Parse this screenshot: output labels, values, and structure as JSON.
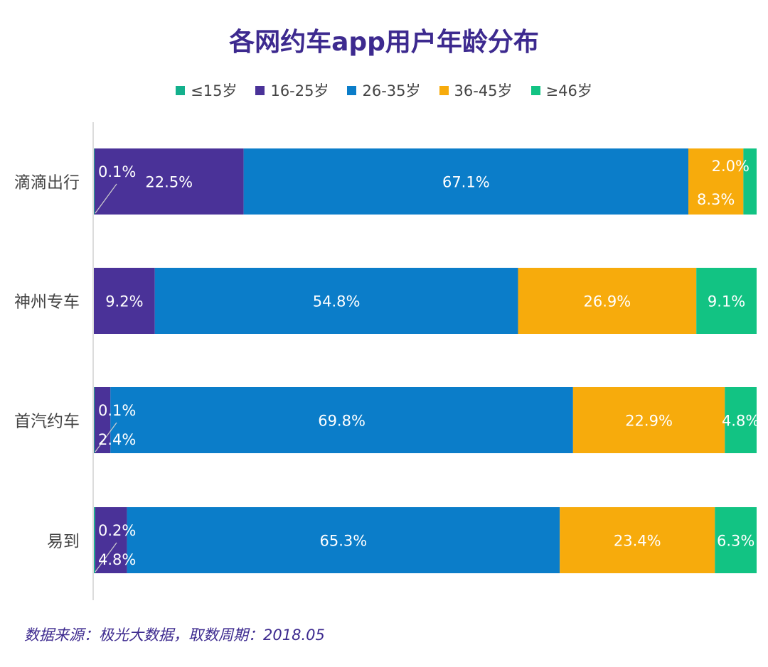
{
  "chart_data": {
    "type": "bar",
    "orientation": "horizontal",
    "stacked": true,
    "title": "各网约车app用户年龄分布",
    "categories": [
      "滴滴出行",
      "神州专车",
      "首汽约车",
      "易到"
    ],
    "series": [
      {
        "name": "≤15岁",
        "color": "#13b08c",
        "values": [
          0.1,
          0.0,
          0.1,
          0.2
        ]
      },
      {
        "name": "16-25岁",
        "color": "#4a3298",
        "values": [
          22.5,
          9.2,
          2.4,
          4.8
        ]
      },
      {
        "name": "26-35岁",
        "color": "#0b7dc9",
        "values": [
          67.1,
          54.8,
          69.8,
          65.3
        ]
      },
      {
        "name": "36-45岁",
        "color": "#f7ab0c",
        "values": [
          8.3,
          26.9,
          22.9,
          23.4
        ]
      },
      {
        "name": "≥46岁",
        "color": "#12c383",
        "values": [
          2.0,
          9.1,
          4.8,
          6.3
        ]
      }
    ],
    "data_labels": [
      [
        "0.1%",
        "22.5%",
        "67.1%",
        "8.3%",
        "2.0%"
      ],
      [
        "",
        "9.2%",
        "54.8%",
        "26.9%",
        "9.1%"
      ],
      [
        "0.1%",
        "2.4%",
        "69.8%",
        "22.9%",
        "4.8%"
      ],
      [
        "0.2%",
        "4.8%",
        "65.3%",
        "23.4%",
        "6.3%"
      ]
    ],
    "xlim": [
      0,
      100
    ],
    "legend": "top",
    "grid": false
  },
  "source": "数据来源：极光大数据，取数周期：2018.05"
}
